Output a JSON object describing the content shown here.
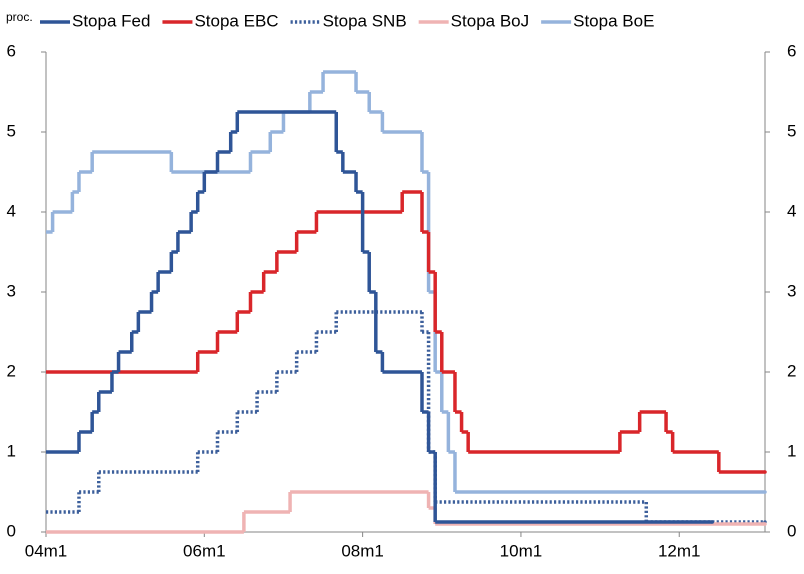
{
  "chart_data": {
    "type": "step",
    "y_unit_label": "proc.",
    "xlim": [
      0,
      109
    ],
    "xticks": [
      {
        "value": 0,
        "label": "04m1"
      },
      {
        "value": 24,
        "label": "06m1"
      },
      {
        "value": 48,
        "label": "08m1"
      },
      {
        "value": 72,
        "label": "10m1"
      },
      {
        "value": 96,
        "label": "12m1"
      }
    ],
    "ylim": [
      0,
      6
    ],
    "yticks": [
      0,
      1,
      2,
      3,
      4,
      5,
      6
    ],
    "y2lim": [
      0,
      6
    ],
    "y2ticks": [
      0,
      1,
      2,
      3,
      4,
      5,
      6
    ],
    "legend": "top",
    "series": [
      {
        "name": "Stopa Fed",
        "color": "#2f5597",
        "style": "solid",
        "x": [
          0,
          5,
          7,
          8,
          10,
          11,
          13,
          14,
          16,
          17,
          19,
          20,
          22,
          23,
          24,
          26,
          28,
          29,
          44,
          45,
          47,
          48,
          49,
          50,
          51,
          57,
          58,
          59,
          101
        ],
        "values": [
          1,
          1.25,
          1.5,
          1.75,
          2,
          2.25,
          2.5,
          2.75,
          3,
          3.25,
          3.5,
          3.75,
          4,
          4.25,
          4.5,
          4.75,
          5,
          5.25,
          4.75,
          4.5,
          4.25,
          3.5,
          3,
          2.25,
          2,
          1.5,
          1,
          0.125,
          0.125
        ]
      },
      {
        "name": "Stopa EBC",
        "color": "#d9262a",
        "style": "solid",
        "x": [
          0,
          23,
          26,
          29,
          31,
          33,
          35,
          38,
          41,
          54,
          57,
          58,
          59,
          60,
          62,
          63,
          64,
          87,
          90,
          94,
          95,
          102,
          109
        ],
        "values": [
          2,
          2.25,
          2.5,
          2.75,
          3,
          3.25,
          3.5,
          3.75,
          4,
          4.25,
          3.75,
          3.25,
          2.5,
          2,
          1.5,
          1.25,
          1,
          1.25,
          1.5,
          1.25,
          1,
          0.75,
          0.75
        ]
      },
      {
        "name": "Stopa SNB",
        "color": "#3c5f9b",
        "style": "dotted",
        "x": [
          0,
          5,
          8,
          23,
          26,
          29,
          32,
          35,
          38,
          41,
          44,
          57,
          58,
          59,
          91,
          109
        ],
        "values": [
          0.25,
          0.5,
          0.75,
          1,
          1.25,
          1.5,
          1.75,
          2,
          2.25,
          2.5,
          2.75,
          2.5,
          1,
          0.375,
          0.125,
          0.125
        ]
      },
      {
        "name": "Stopa BoJ",
        "color": "#efb3b3",
        "style": "solid",
        "x": [
          0,
          30,
          37,
          58,
          59,
          109
        ],
        "values": [
          0,
          0.25,
          0.5,
          0.3,
          0.1,
          0.1
        ]
      },
      {
        "name": "Stopa BoE",
        "color": "#95b3dc",
        "style": "solid",
        "x": [
          0,
          1,
          4,
          5,
          7,
          19,
          31,
          34,
          36,
          40,
          42,
          47,
          49,
          51,
          57,
          58,
          59,
          60,
          61,
          62,
          109
        ],
        "values": [
          3.75,
          4,
          4.25,
          4.5,
          4.75,
          4.5,
          4.75,
          5,
          5.25,
          5.5,
          5.75,
          5.5,
          5.25,
          5,
          4.5,
          3,
          2,
          1.5,
          1,
          0.5,
          0.5
        ]
      }
    ]
  }
}
